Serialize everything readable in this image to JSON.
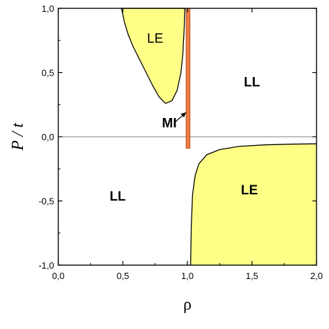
{
  "chart_data": {
    "type": "phase-diagram",
    "xlabel": "ρ",
    "ylabel": "P / t",
    "xlim": [
      0.0,
      2.0
    ],
    "ylim": [
      -1.0,
      1.0
    ],
    "x_ticks": [
      0.0,
      0.5,
      1.0,
      1.5,
      2.0
    ],
    "x_tick_labels": [
      "0,0",
      "0,5",
      "1,0",
      "1,5",
      "2,0"
    ],
    "y_ticks": [
      -1.0,
      -0.5,
      0.0,
      0.5,
      1.0
    ],
    "y_tick_labels": [
      "-1,0",
      "-0,5",
      "0,0",
      "0,5",
      "1,0"
    ],
    "reference_line_y": 0.0,
    "colors": {
      "LE": "#ffff88",
      "MI": "#ee7d45",
      "MI_edge": "#b5521d",
      "line": "#000000",
      "reference": "#808080"
    },
    "regions": [
      {
        "name": "LE-upper",
        "label": "LE",
        "label_at": [
          0.75,
          0.77
        ],
        "label_weight": "normal",
        "fill": "#ffff88",
        "boundary": [
          [
            0.49,
            1.0
          ],
          [
            0.51,
            0.9
          ],
          [
            0.54,
            0.8
          ],
          [
            0.58,
            0.7
          ],
          [
            0.63,
            0.6
          ],
          [
            0.68,
            0.5
          ],
          [
            0.73,
            0.4
          ],
          [
            0.78,
            0.31
          ],
          [
            0.83,
            0.26
          ],
          [
            0.88,
            0.28
          ],
          [
            0.92,
            0.36
          ],
          [
            0.95,
            0.5
          ],
          [
            0.965,
            0.65
          ],
          [
            0.975,
            0.85
          ],
          [
            0.98,
            1.0
          ]
        ]
      },
      {
        "name": "LE-lower",
        "label": "LE",
        "label_at": [
          1.48,
          -0.41
        ],
        "label_weight": "bold",
        "fill": "#ffff88",
        "boundary": [
          [
            1.025,
            -1.0
          ],
          [
            1.03,
            -0.7
          ],
          [
            1.04,
            -0.45
          ],
          [
            1.06,
            -0.3
          ],
          [
            1.09,
            -0.21
          ],
          [
            1.15,
            -0.14
          ],
          [
            1.25,
            -0.1
          ],
          [
            1.4,
            -0.075
          ],
          [
            1.6,
            -0.063
          ],
          [
            1.8,
            -0.058
          ],
          [
            2.0,
            -0.055
          ]
        ]
      },
      {
        "name": "MI",
        "label": "MI",
        "label_at": [
          0.86,
          0.11
        ],
        "label_weight": "bold",
        "fill": "#ee7d45",
        "x_range": [
          0.99,
          1.02
        ],
        "y_range": [
          -0.09,
          1.0
        ]
      }
    ],
    "labels": [
      {
        "text": "LL",
        "at": [
          1.5,
          0.43
        ],
        "weight": "bold"
      },
      {
        "text": "LL",
        "at": [
          0.46,
          -0.46
        ],
        "weight": "bold"
      }
    ],
    "arrow": {
      "from": [
        0.9,
        0.11
      ],
      "to": [
        0.99,
        0.19
      ]
    }
  }
}
